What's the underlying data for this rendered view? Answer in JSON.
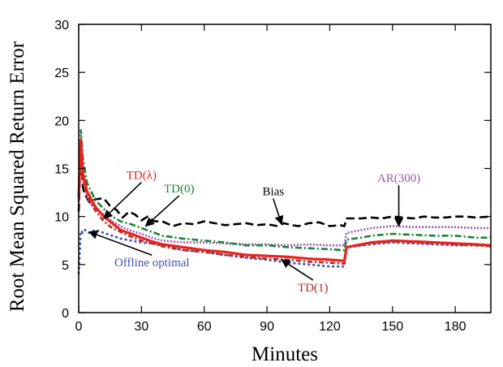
{
  "chart_data": {
    "type": "line",
    "xlabel": "Minutes",
    "ylabel": "Root Mean Squared Return Error",
    "xlim": [
      0,
      197
    ],
    "ylim": [
      0,
      30
    ],
    "xticks": [
      0,
      30,
      60,
      90,
      120,
      150,
      180
    ],
    "yticks": [
      0,
      5,
      10,
      15,
      20,
      25,
      30
    ],
    "grid": false,
    "legend": "none",
    "series": [
      {
        "name": "Bias",
        "color": "#000000",
        "dash": "10,5",
        "x": [
          0,
          1,
          2,
          3,
          5,
          8,
          12,
          15,
          18,
          21,
          24,
          27,
          30,
          33,
          36,
          40,
          45,
          50,
          55,
          60,
          65,
          70,
          75,
          80,
          85,
          90,
          95,
          98,
          102,
          105,
          110,
          115,
          120,
          125,
          127,
          128,
          135,
          140,
          145,
          150,
          155,
          160,
          165,
          170,
          175,
          180,
          185,
          190,
          197
        ],
        "y": [
          10.5,
          17.0,
          13.0,
          12.3,
          11.5,
          11.8,
          11.9,
          11.1,
          10.7,
          9.9,
          10.5,
          10.2,
          9.6,
          10.0,
          9.5,
          9.5,
          9.0,
          9.3,
          9.2,
          9.5,
          9.3,
          9.1,
          9.2,
          9.3,
          9.1,
          9.2,
          9.0,
          9.3,
          9.1,
          9.0,
          9.3,
          9.4,
          9.0,
          9.1,
          9.0,
          9.8,
          9.8,
          9.9,
          9.8,
          10.0,
          9.9,
          9.8,
          10.0,
          9.9,
          9.9,
          10.0,
          10.0,
          9.9,
          10.0
        ]
      },
      {
        "name": "AR(300)",
        "color": "#a652b4",
        "dash": "2,2",
        "x": [
          0,
          1,
          2,
          4,
          8,
          12,
          16,
          20,
          25,
          30,
          35,
          40,
          50,
          60,
          70,
          80,
          90,
          100,
          110,
          120,
          127,
          128,
          140,
          150,
          160,
          170,
          180,
          190,
          197
        ],
        "y": [
          14.0,
          16.0,
          13.8,
          11.8,
          10.8,
          10.2,
          9.5,
          9.0,
          8.5,
          8.2,
          7.8,
          7.5,
          7.3,
          7.3,
          7.2,
          7.1,
          7.1,
          7.0,
          7.1,
          7.0,
          7.0,
          8.3,
          8.8,
          9.0,
          8.9,
          8.9,
          8.9,
          8.8,
          8.8
        ]
      },
      {
        "name": "TD(0)",
        "color": "#17853a",
        "dash": "8,3,2,3",
        "x": [
          0,
          1,
          2,
          4,
          8,
          12,
          16,
          20,
          25,
          30,
          35,
          40,
          50,
          60,
          70,
          80,
          90,
          100,
          110,
          120,
          126,
          127,
          128,
          135,
          140,
          150,
          160,
          170,
          180,
          190,
          197
        ],
        "y": [
          12.0,
          19.0,
          16.0,
          13.5,
          11.7,
          10.8,
          10.0,
          9.5,
          9.2,
          8.8,
          8.4,
          8.0,
          7.7,
          7.5,
          7.3,
          7.0,
          7.0,
          6.8,
          6.7,
          6.6,
          6.5,
          6.5,
          7.6,
          7.8,
          8.0,
          8.2,
          8.1,
          8.0,
          8.0,
          7.8,
          7.8
        ]
      },
      {
        "name": "Offline optimal",
        "color": "#3e50b4",
        "dash": "3,3",
        "x": [
          0,
          1,
          2,
          3,
          5,
          8,
          12,
          16,
          20,
          25,
          30,
          35,
          40,
          50,
          60,
          70,
          80,
          90,
          100,
          110,
          120,
          126,
          127,
          128,
          140,
          150,
          160,
          170,
          180,
          190,
          197
        ],
        "y": [
          4.0,
          8.5,
          8.3,
          8.6,
          8.3,
          8.6,
          8.3,
          8.0,
          7.7,
          7.5,
          7.3,
          7.2,
          7.0,
          6.5,
          6.3,
          6.0,
          5.7,
          5.5,
          5.2,
          5.0,
          4.8,
          4.8,
          4.8,
          6.8,
          7.1,
          7.3,
          7.2,
          7.1,
          7.0,
          7.0,
          7.0
        ]
      },
      {
        "name": "TD(1)",
        "color": "#b32a24",
        "dash": "6,3,2,3",
        "x": [
          0,
          1,
          2,
          4,
          8,
          12,
          16,
          20,
          25,
          30,
          35,
          40,
          50,
          60,
          70,
          80,
          90,
          100,
          110,
          120,
          126,
          127,
          128,
          140,
          150,
          160,
          170,
          180,
          190,
          197
        ],
        "y": [
          11.5,
          17.0,
          14.0,
          12.2,
          10.6,
          9.5,
          8.8,
          8.4,
          7.9,
          7.5,
          7.2,
          6.9,
          6.5,
          6.3,
          6.0,
          5.8,
          5.6,
          5.5,
          5.3,
          5.2,
          5.1,
          5.1,
          6.8,
          7.2,
          7.4,
          7.3,
          7.2,
          7.1,
          7.0,
          6.9
        ]
      },
      {
        "name": "TD(λ)",
        "color": "#e8231b",
        "dash": "",
        "x": [
          0,
          1,
          2,
          4,
          8,
          12,
          16,
          20,
          25,
          30,
          35,
          40,
          50,
          60,
          70,
          80,
          90,
          100,
          110,
          120,
          126,
          127,
          128,
          140,
          150,
          160,
          170,
          180,
          190,
          197
        ],
        "y": [
          12.0,
          18.0,
          14.5,
          12.6,
          11.0,
          10.0,
          9.3,
          8.6,
          8.2,
          7.8,
          7.4,
          7.1,
          6.8,
          6.5,
          6.3,
          6.0,
          5.9,
          5.8,
          5.6,
          5.5,
          5.4,
          5.4,
          6.8,
          7.3,
          7.5,
          7.4,
          7.3,
          7.2,
          7.1,
          7.0
        ]
      }
    ],
    "annotations": [
      {
        "text": "Bias",
        "color": "#000000",
        "text_x": 93,
        "text_y": 12.2,
        "arrow_x": 97,
        "arrow_y": 9.2
      },
      {
        "text": "AR(300)",
        "color": "#a652b4",
        "text_x": 153,
        "text_y": 13.6,
        "arrow_x": 153,
        "arrow_y": 9.0
      },
      {
        "text": "TD(0)",
        "color": "#17853a",
        "text_x": 48,
        "text_y": 12.5,
        "arrow_x": 32,
        "arrow_y": 9.0
      },
      {
        "text": "TD(λ)",
        "color": "#e8231b",
        "text_x": 30,
        "text_y": 13.9,
        "arrow_x": 12,
        "arrow_y": 9.8
      },
      {
        "text": "Offline optimal",
        "color": "#3e50b4",
        "text_x": 35,
        "text_y": 4.8,
        "arrow_x": 5,
        "arrow_y": 8.4
      },
      {
        "text": "TD(1)",
        "color": "#b32a24",
        "text_x": 112,
        "text_y": 2.2,
        "arrow_x": 97,
        "arrow_y": 5.5
      }
    ]
  }
}
